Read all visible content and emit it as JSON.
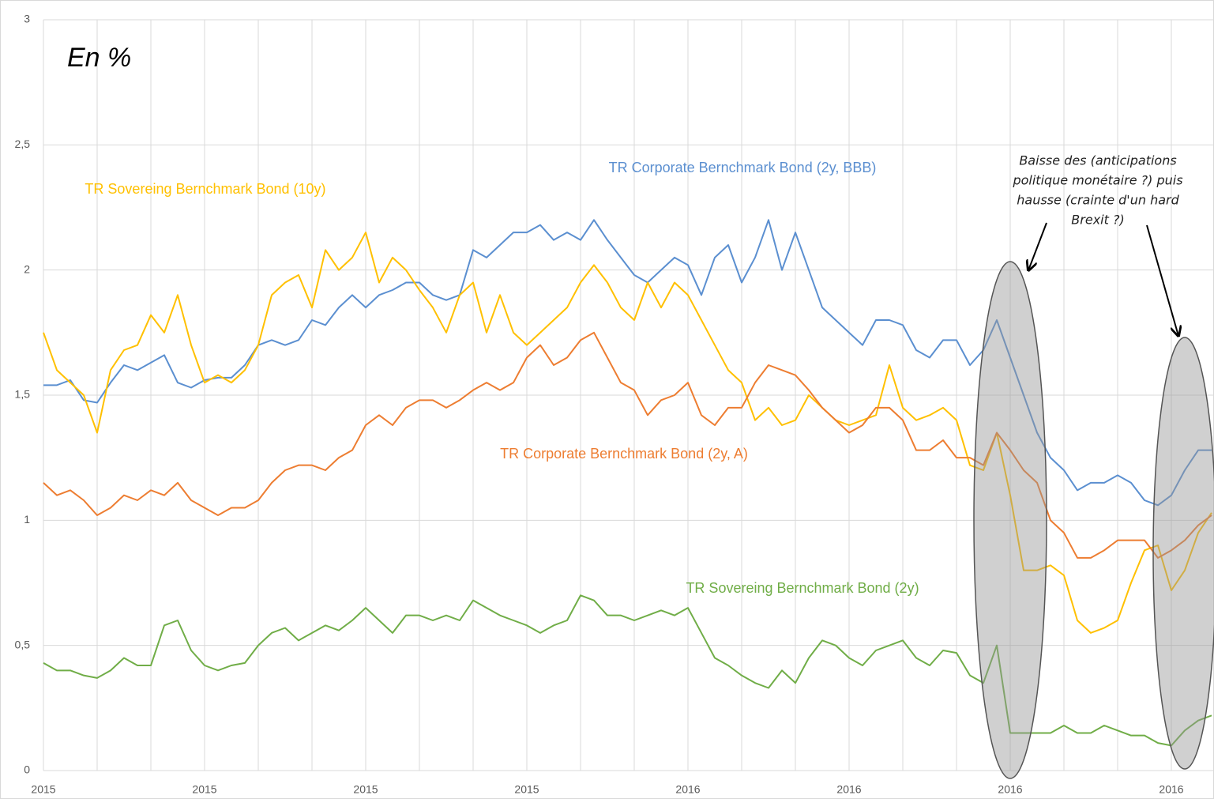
{
  "chart_data": {
    "type": "line",
    "annotations": {
      "unit": "En %",
      "note": [
        "Baisse des (anticipations",
        "politique monétaire ?)  puis",
        "hausse (crainte d'un hard",
        "Brexit ?)"
      ]
    },
    "categories": [
      "2015",
      null,
      null,
      null,
      null,
      null,
      null,
      null,
      null,
      null,
      null,
      null,
      "2015",
      null,
      null,
      null,
      null,
      null,
      null,
      null,
      null,
      null,
      null,
      null,
      "2015",
      null,
      null,
      null,
      null,
      null,
      null,
      null,
      null,
      null,
      null,
      null,
      "2015",
      null,
      null,
      null,
      null,
      null,
      null,
      null,
      null,
      null,
      null,
      null,
      "2016",
      null,
      null,
      null,
      null,
      null,
      null,
      null,
      null,
      null,
      null,
      null,
      "2016",
      null,
      null,
      null,
      null,
      null,
      null,
      null,
      null,
      null,
      null,
      null,
      "2016",
      null,
      null,
      null,
      null,
      null,
      null,
      null,
      null,
      null,
      null,
      null,
      "2016",
      null,
      null,
      null
    ],
    "ylim": [
      0,
      3
    ],
    "yticks": [
      0,
      {
        "value": 0.5,
        "label": "0,5"
      },
      1,
      {
        "value": 1.5,
        "label": "1,5"
      },
      2,
      {
        "value": 2.5,
        "label": "2,5"
      },
      3
    ],
    "grid": true,
    "xgrid": true,
    "series": [
      {
        "name": "TR Corporate Bernchmark Bond (2y, BBB)",
        "color": "#5b8fd0",
        "values": [
          1.54,
          1.54,
          1.56,
          1.48,
          1.47,
          1.55,
          1.62,
          1.6,
          1.63,
          1.66,
          1.55,
          1.53,
          1.56,
          1.57,
          1.57,
          1.62,
          1.7,
          1.72,
          1.7,
          1.72,
          1.8,
          1.78,
          1.85,
          1.9,
          1.85,
          1.9,
          1.92,
          1.95,
          1.95,
          1.9,
          1.88,
          1.9,
          2.08,
          2.05,
          2.1,
          2.15,
          2.15,
          2.18,
          2.12,
          2.15,
          2.12,
          2.2,
          2.12,
          2.05,
          1.98,
          1.95,
          2.0,
          2.05,
          2.02,
          1.9,
          2.05,
          2.1,
          1.95,
          2.05,
          2.2,
          2.0,
          2.15,
          2.0,
          1.85,
          1.8,
          1.75,
          1.7,
          1.8,
          1.8,
          1.78,
          1.68,
          1.65,
          1.72,
          1.72,
          1.62,
          1.68,
          1.8,
          1.65,
          1.5,
          1.35,
          1.25,
          1.2,
          1.12,
          1.15,
          1.15,
          1.18,
          1.15,
          1.08,
          1.06,
          1.1,
          1.2,
          1.28,
          1.28
        ]
      },
      {
        "name": "TR Sovereing Bernchmark Bond (10y)",
        "color": "#ffc000",
        "values": [
          1.75,
          1.6,
          1.55,
          1.5,
          1.35,
          1.6,
          1.68,
          1.7,
          1.82,
          1.75,
          1.9,
          1.7,
          1.55,
          1.58,
          1.55,
          1.6,
          1.7,
          1.9,
          1.95,
          1.98,
          1.85,
          2.08,
          2.0,
          2.05,
          2.15,
          1.95,
          2.05,
          2.0,
          1.92,
          1.85,
          1.75,
          1.9,
          1.95,
          1.75,
          1.9,
          1.75,
          1.7,
          1.75,
          1.8,
          1.85,
          1.95,
          2.02,
          1.95,
          1.85,
          1.8,
          1.95,
          1.85,
          1.95,
          1.9,
          1.8,
          1.7,
          1.6,
          1.55,
          1.4,
          1.45,
          1.38,
          1.4,
          1.5,
          1.45,
          1.4,
          1.38,
          1.4,
          1.42,
          1.62,
          1.45,
          1.4,
          1.42,
          1.45,
          1.4,
          1.22,
          1.2,
          1.35,
          1.1,
          0.8,
          0.8,
          0.82,
          0.78,
          0.6,
          0.55,
          0.57,
          0.6,
          0.75,
          0.88,
          0.9,
          0.72,
          0.8,
          0.95,
          1.03
        ]
      },
      {
        "name": "TR Corporate Bernchmark Bond (2y, A)",
        "color": "#ed7d31",
        "values": [
          1.15,
          1.1,
          1.12,
          1.08,
          1.02,
          1.05,
          1.1,
          1.08,
          1.12,
          1.1,
          1.15,
          1.08,
          1.05,
          1.02,
          1.05,
          1.05,
          1.08,
          1.15,
          1.2,
          1.22,
          1.22,
          1.2,
          1.25,
          1.28,
          1.38,
          1.42,
          1.38,
          1.45,
          1.48,
          1.48,
          1.45,
          1.48,
          1.52,
          1.55,
          1.52,
          1.55,
          1.65,
          1.7,
          1.62,
          1.65,
          1.72,
          1.75,
          1.65,
          1.55,
          1.52,
          1.42,
          1.48,
          1.5,
          1.55,
          1.42,
          1.38,
          1.45,
          1.45,
          1.55,
          1.62,
          1.6,
          1.58,
          1.52,
          1.45,
          1.4,
          1.35,
          1.38,
          1.45,
          1.45,
          1.4,
          1.28,
          1.28,
          1.32,
          1.25,
          1.25,
          1.22,
          1.35,
          1.28,
          1.2,
          1.15,
          1.0,
          0.95,
          0.85,
          0.85,
          0.88,
          0.92,
          0.92,
          0.92,
          0.85,
          0.88,
          0.92,
          0.98,
          1.02
        ]
      },
      {
        "name": "TR Sovereing Bernchmark Bond (2y)",
        "color": "#70ad47",
        "values": [
          0.43,
          0.4,
          0.4,
          0.38,
          0.37,
          0.4,
          0.45,
          0.42,
          0.42,
          0.58,
          0.6,
          0.48,
          0.42,
          0.4,
          0.42,
          0.43,
          0.5,
          0.55,
          0.57,
          0.52,
          0.55,
          0.58,
          0.56,
          0.6,
          0.65,
          0.6,
          0.55,
          0.62,
          0.62,
          0.6,
          0.62,
          0.6,
          0.68,
          0.65,
          0.62,
          0.6,
          0.58,
          0.55,
          0.58,
          0.6,
          0.7,
          0.68,
          0.62,
          0.62,
          0.6,
          0.62,
          0.64,
          0.62,
          0.65,
          0.55,
          0.45,
          0.42,
          0.38,
          0.35,
          0.33,
          0.4,
          0.35,
          0.45,
          0.52,
          0.5,
          0.45,
          0.42,
          0.48,
          0.5,
          0.52,
          0.45,
          0.42,
          0.48,
          0.47,
          0.38,
          0.35,
          0.5,
          0.15,
          0.15,
          0.15,
          0.15,
          0.18,
          0.15,
          0.15,
          0.18,
          0.16,
          0.14,
          0.14,
          0.11,
          0.1,
          0.16,
          0.2,
          0.22
        ]
      }
    ]
  }
}
